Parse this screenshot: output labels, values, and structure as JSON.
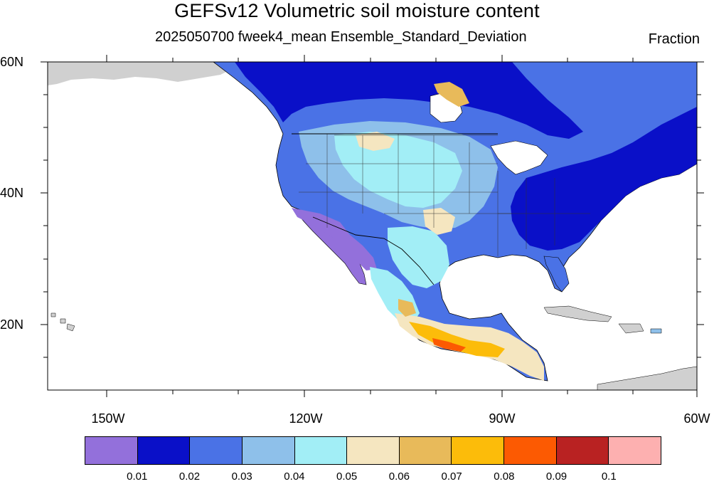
{
  "title": "GEFSv12 Volumetric soil moisture content",
  "subtitle": "2025050700 fweek4_mean Ensemble_Standard_Deviation",
  "units": "Fraction",
  "latitude_labels": [
    "60N",
    "40N",
    "20N"
  ],
  "longitude_labels": [
    "150W",
    "120W",
    "90W",
    "60W"
  ],
  "colorbar": {
    "colors": [
      "#9370db",
      "#0a10c8",
      "#4a72e6",
      "#8ec0ea",
      "#a2eef6",
      "#f5e6c0",
      "#e8ba5a",
      "#fcbc0a",
      "#fc5a02",
      "#b92222",
      "#fdb0b0"
    ],
    "labels": [
      "0.01",
      "0.02",
      "0.03",
      "0.04",
      "0.05",
      "0.06",
      "0.07",
      "0.08",
      "0.09",
      "0.1"
    ]
  },
  "colors": {
    "no_data_gray": "#d0d0d0",
    "ocean": "#ffffff",
    "outline": "#000000"
  }
}
